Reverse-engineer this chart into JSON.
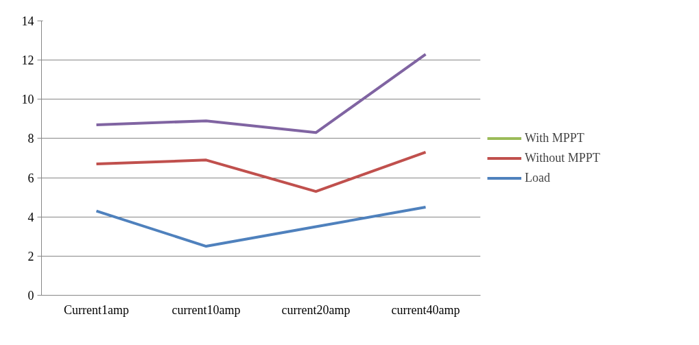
{
  "chart_data": {
    "type": "line",
    "categories": [
      "Current1amp",
      "current10amp",
      "current20amp",
      "current40amp"
    ],
    "series": [
      {
        "name": "With MPPT",
        "color": "#9bbb59",
        "values": [
          null,
          null,
          null,
          null
        ]
      },
      {
        "name": "Without MPPT",
        "color": "#c0504d",
        "values": [
          6.7,
          6.9,
          5.3,
          7.3
        ]
      },
      {
        "name": "Load",
        "color": "#4f81bd",
        "values": [
          4.3,
          2.5,
          3.5,
          4.5
        ]
      },
      {
        "color": "#8064a2",
        "values": [
          8.7,
          8.9,
          8.3,
          12.3
        ]
      }
    ],
    "ylim": [
      0,
      14
    ],
    "yticks": [
      0,
      2,
      4,
      6,
      8,
      10,
      12,
      14
    ],
    "grid": "y",
    "legend": "right",
    "marker": "none",
    "line_style": "solid"
  }
}
